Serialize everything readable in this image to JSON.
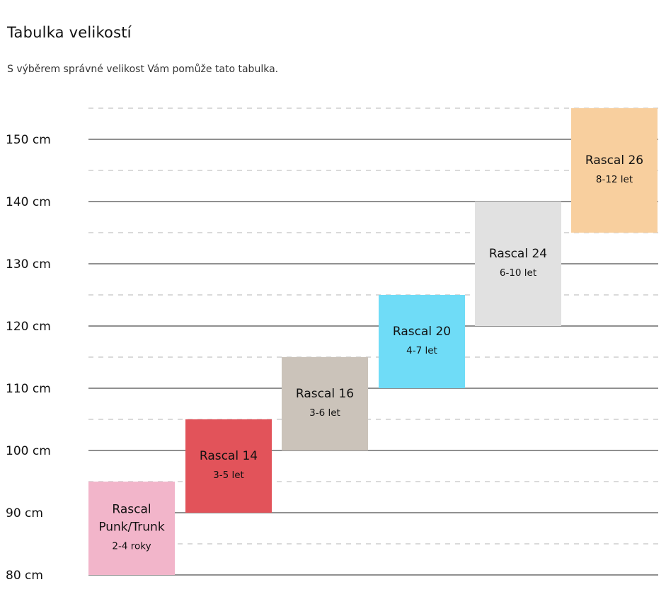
{
  "header": {
    "title": "Tabulka velikostí",
    "subtitle": "S výběrem správné velikost Vám pomůže tato tabulka."
  },
  "chart_data": {
    "type": "bar",
    "title": "",
    "xlabel": "",
    "ylabel": "",
    "ylim": [
      80,
      155
    ],
    "unit": "cm",
    "grid": true,
    "y_ticks": [
      "150 cm",
      "140 cm",
      "130 cm",
      "120 cm",
      "110 cm",
      "100 cm",
      "90 cm",
      "80 cm"
    ],
    "y_tick_values": [
      150,
      140,
      130,
      120,
      110,
      100,
      90,
      80
    ],
    "bars": [
      {
        "name_lines": [
          "Rascal",
          "Punk/Trunk"
        ],
        "age": "2-4 roky",
        "min": 80,
        "max": 95,
        "color": "#f2b5ca"
      },
      {
        "name_lines": [
          "Rascal 14"
        ],
        "age": "3-5 let",
        "min": 90,
        "max": 105,
        "color": "#e2535a"
      },
      {
        "name_lines": [
          "Rascal 16"
        ],
        "age": "3-6 let",
        "min": 100,
        "max": 115,
        "color": "#cbc3ba"
      },
      {
        "name_lines": [
          "Rascal 20"
        ],
        "age": "4-7 let",
        "min": 110,
        "max": 125,
        "color": "#6fdcf7"
      },
      {
        "name_lines": [
          "Rascal 24"
        ],
        "age": "6-10 let",
        "min": 120,
        "max": 140,
        "color": "#e1e1e1"
      },
      {
        "name_lines": [
          "Rascal 26"
        ],
        "age": "8-12 let",
        "min": 135,
        "max": 155,
        "color": "#f8cf9e"
      }
    ]
  }
}
